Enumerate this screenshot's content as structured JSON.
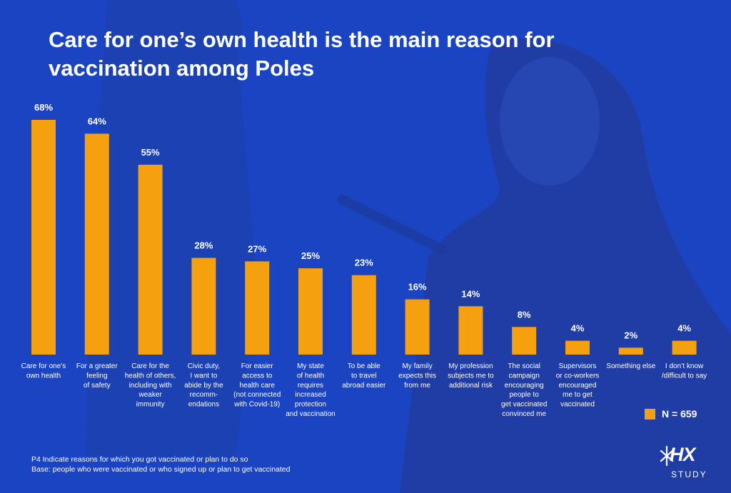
{
  "title": "Care for one’s own health is the main reason for vaccination among Poles",
  "legend": {
    "label": "N = 659",
    "color": "#f5a00f"
  },
  "footnote": {
    "line1": "P4 Indicate reasons for which you got vaccinated or plan to do so",
    "line2": "Base: people who were vaccinated or who signed up or plan to get vaccinated"
  },
  "logo": {
    "main": "HX",
    "sub": "STUDY",
    "icon": "star-burst-icon"
  },
  "colors": {
    "background": "#1a44c2",
    "bar": "#f5a00f",
    "text": "#ffffff"
  },
  "chart_data": {
    "type": "bar",
    "ylim": [
      0,
      68
    ],
    "grid": false,
    "legend_position": "bottom-right",
    "categories": [
      [
        "Care for one’s",
        "own health"
      ],
      [
        "For a greater",
        "feeling",
        "of safety"
      ],
      [
        "Care for the",
        "health of others,",
        "including with",
        "weaker",
        "immunity"
      ],
      [
        "Civic duty,",
        "I want to",
        "abide by the",
        "recomm-",
        "endations"
      ],
      [
        "For easier",
        "access to",
        "health care",
        "(not connected",
        "with Covid-19)"
      ],
      [
        "My state",
        "of health",
        "requires",
        "increased",
        "protection",
        "and vaccination"
      ],
      [
        "To be able",
        "to travel",
        "abroad easier"
      ],
      [
        "My family",
        "expects this",
        "from me"
      ],
      [
        "My profession",
        "subjects me to",
        "additional risk"
      ],
      [
        "The social",
        "campaign",
        "encouraging",
        "people to",
        "get vaccinated",
        "convinced me"
      ],
      [
        "Supervisors",
        "or co-workers",
        "encouraged",
        "me to get",
        "vaccinated"
      ],
      [
        "Something else"
      ],
      [
        "I don’t know",
        "/difficult to say"
      ]
    ],
    "values": [
      68,
      64,
      55,
      28,
      27,
      25,
      23,
      16,
      14,
      8,
      4,
      2,
      4
    ],
    "value_labels": [
      "68%",
      "64%",
      "55%",
      "28%",
      "27%",
      "25%",
      "23%",
      "16%",
      "14%",
      "8%",
      "4%",
      "2%",
      "4%"
    ]
  }
}
